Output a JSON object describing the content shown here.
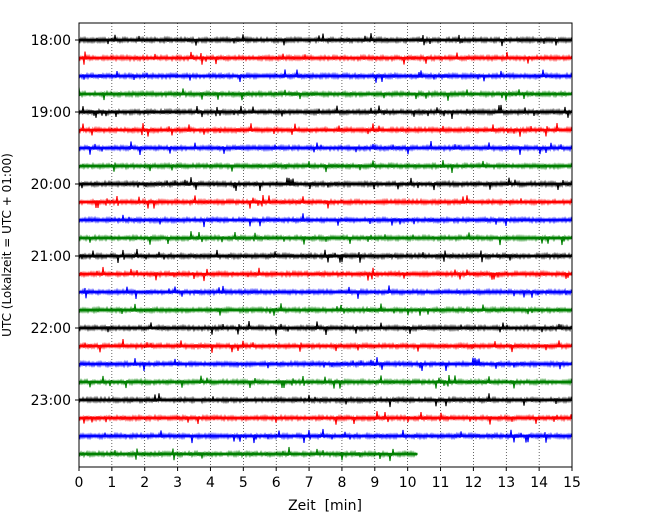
{
  "chart_data": {
    "type": "line",
    "title": "",
    "xlabel": "Zeit  [min]",
    "ylabel": "UTC (Lokalzeit = UTC + 01:00)",
    "xlim": [
      0,
      15
    ],
    "xticks": [
      0,
      1,
      2,
      3,
      4,
      5,
      6,
      7,
      8,
      9,
      10,
      11,
      12,
      13,
      14,
      15
    ],
    "x_tick_labels": [
      "0",
      "1",
      "2",
      "3",
      "4",
      "5",
      "6",
      "7",
      "8",
      "9",
      "10",
      "11",
      "12",
      "13",
      "14",
      "15"
    ],
    "vertical_grid": "dotted",
    "y_tick_labels": [
      "18:00",
      "19:00",
      "20:00",
      "21:00",
      "22:00",
      "23:00"
    ],
    "trace_colors": [
      "#000000",
      "#ff0000",
      "#0000ff",
      "#008000"
    ],
    "traces": [
      {
        "start": "18:00",
        "color": "#000000",
        "end_min": 15
      },
      {
        "start": "18:15",
        "color": "#ff0000",
        "end_min": 15
      },
      {
        "start": "18:30",
        "color": "#0000ff",
        "end_min": 15
      },
      {
        "start": "18:45",
        "color": "#008000",
        "end_min": 15
      },
      {
        "start": "19:00",
        "color": "#000000",
        "end_min": 15
      },
      {
        "start": "19:15",
        "color": "#ff0000",
        "end_min": 15
      },
      {
        "start": "19:30",
        "color": "#0000ff",
        "end_min": 15
      },
      {
        "start": "19:45",
        "color": "#008000",
        "end_min": 15
      },
      {
        "start": "20:00",
        "color": "#000000",
        "end_min": 15
      },
      {
        "start": "20:15",
        "color": "#ff0000",
        "end_min": 15
      },
      {
        "start": "20:30",
        "color": "#0000ff",
        "end_min": 15
      },
      {
        "start": "20:45",
        "color": "#008000",
        "end_min": 15
      },
      {
        "start": "21:00",
        "color": "#000000",
        "end_min": 15
      },
      {
        "start": "21:15",
        "color": "#ff0000",
        "end_min": 15
      },
      {
        "start": "21:30",
        "color": "#0000ff",
        "end_min": 15
      },
      {
        "start": "21:45",
        "color": "#008000",
        "end_min": 15
      },
      {
        "start": "22:00",
        "color": "#000000",
        "end_min": 15
      },
      {
        "start": "22:15",
        "color": "#ff0000",
        "end_min": 15
      },
      {
        "start": "22:30",
        "color": "#0000ff",
        "end_min": 15
      },
      {
        "start": "22:45",
        "color": "#008000",
        "end_min": 15
      },
      {
        "start": "23:00",
        "color": "#000000",
        "end_min": 15
      },
      {
        "start": "23:15",
        "color": "#ff0000",
        "end_min": 15
      },
      {
        "start": "23:30",
        "color": "#0000ff",
        "end_min": 15
      },
      {
        "start": "23:45",
        "color": "#008000",
        "end_min": 10.3
      }
    ]
  }
}
